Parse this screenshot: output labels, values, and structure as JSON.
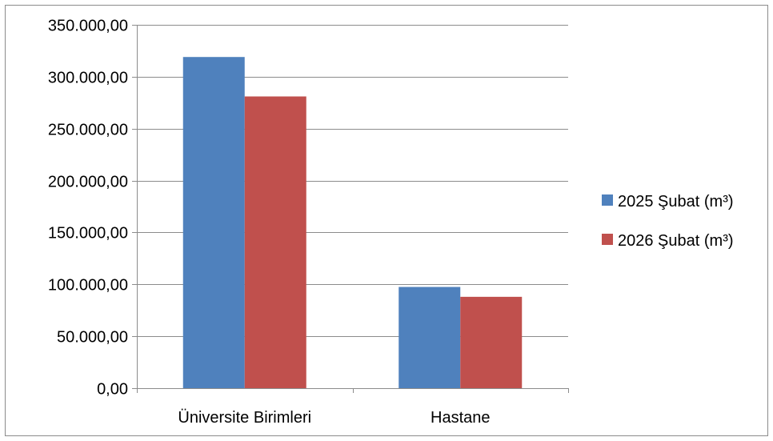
{
  "chart_data": {
    "type": "bar",
    "categories": [
      "Üniversite Birimleri",
      "Hastane"
    ],
    "series": [
      {
        "name": "2025 Şubat (m³)",
        "values": [
          319000,
          97500
        ],
        "color": "#4F81BD"
      },
      {
        "name": "2026 Şubat (m³)",
        "values": [
          281000,
          88000
        ],
        "color": "#C0504D"
      }
    ],
    "ylim": [
      0,
      350000
    ],
    "y_ticks": [
      0,
      50000,
      100000,
      150000,
      200000,
      250000,
      300000,
      350000
    ],
    "y_tick_labels": [
      "0,00",
      "50.000,00",
      "100.000,00",
      "150.000,00",
      "200.000,00",
      "250.000,00",
      "300.000,00",
      "350.000,00"
    ],
    "grid": true,
    "legend_position": "right",
    "title": "",
    "xlabel": "",
    "ylabel": ""
  }
}
